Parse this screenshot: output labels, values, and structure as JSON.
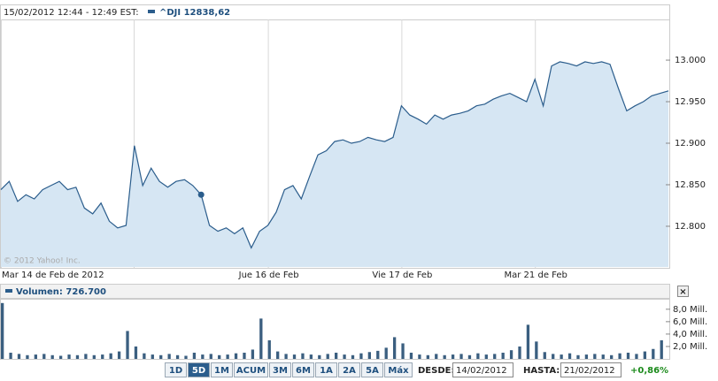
{
  "header": {
    "time": "15/02/2012 12:44 - 12:49 EST:",
    "symbol": "^DJI 12838,62"
  },
  "chart_data": [
    {
      "type": "area",
      "copyright": "© 2012 Yahoo! Inc.",
      "line_color": "#2b5d8c",
      "fill_color": "#d6e6f3",
      "xlim": [
        0,
        80
      ],
      "ylim": [
        12751,
        13049
      ],
      "xticks": [
        {
          "value": 0,
          "label": "Mar 14 de Feb de 2012"
        },
        {
          "value": 32,
          "label": "Jue 16 de Feb"
        },
        {
          "value": 48,
          "label": "Vie 17 de Feb"
        },
        {
          "value": 64,
          "label": "Mar 21 de Feb"
        }
      ],
      "yticks": [
        {
          "value": 12800,
          "label": "12.800"
        },
        {
          "value": 12850,
          "label": "12.850"
        },
        {
          "value": 12900,
          "label": "12.900"
        },
        {
          "value": 12950,
          "label": "12.950"
        },
        {
          "value": 13000,
          "label": "13.000"
        }
      ],
      "series": [
        {
          "name": "^DJI",
          "color": "#2b5d8c",
          "values": [
            12844,
            12854,
            12830,
            12838,
            12833,
            12844,
            12849,
            12854,
            12844,
            12847,
            12822,
            12815,
            12828,
            12806,
            12798,
            12801,
            12897,
            12849,
            12870,
            12854,
            12847,
            12854,
            12856,
            12849,
            12838,
            12801,
            12794,
            12798,
            12791,
            12798,
            12774,
            12794,
            12801,
            12817,
            12844,
            12849,
            12833,
            12860,
            12886,
            12891,
            12902,
            12904,
            12900,
            12902,
            12907,
            12904,
            12902,
            12907,
            12945,
            12934,
            12929,
            12923,
            12934,
            12929,
            12934,
            12936,
            12939,
            12945,
            12947,
            12953,
            12957,
            12960,
            12955,
            12950,
            12977,
            12945,
            12993,
            12998,
            12996,
            12993,
            12998,
            12996,
            12998,
            12995,
            12966,
            12939,
            12945,
            12950,
            12957,
            12960,
            12963
          ]
        }
      ]
    },
    {
      "type": "volume",
      "title": "Volumen: 726.700",
      "color": "#3b5f80",
      "xlim": [
        0,
        80
      ],
      "ylim": [
        0,
        9.4
      ],
      "yticks": [
        {
          "value": 2,
          "label": "2,0 Mill."
        },
        {
          "value": 4,
          "label": "4,0 Mill."
        },
        {
          "value": 6,
          "label": "6,0 Mill."
        },
        {
          "value": 8,
          "label": "8,0 Mill."
        }
      ],
      "values": [
        9.0,
        1.0,
        0.8,
        0.6,
        0.7,
        0.8,
        0.6,
        0.5,
        0.7,
        0.6,
        0.8,
        0.6,
        0.7,
        0.9,
        1.2,
        4.5,
        2.0,
        0.9,
        0.7,
        0.6,
        0.8,
        0.6,
        0.5,
        1.0,
        0.7,
        0.8,
        0.6,
        0.7,
        0.9,
        1.0,
        1.5,
        6.5,
        3.0,
        1.2,
        0.8,
        0.7,
        0.9,
        0.7,
        0.6,
        0.8,
        1.0,
        0.7,
        0.6,
        0.9,
        1.1,
        1.3,
        1.8,
        3.5,
        2.5,
        1.0,
        0.7,
        0.6,
        0.8,
        0.6,
        0.7,
        0.8,
        0.6,
        0.9,
        0.7,
        0.8,
        1.0,
        1.4,
        2.0,
        5.5,
        2.8,
        1.1,
        0.8,
        0.7,
        0.9,
        0.6,
        0.7,
        0.8,
        0.7,
        0.6,
        0.9,
        1.0,
        0.8,
        1.2,
        1.6,
        3.0
      ]
    }
  ],
  "controls": {
    "ranges": [
      "1D",
      "5D",
      "1M",
      "ACUM",
      "3M",
      "6M",
      "1A",
      "2A",
      "5A",
      "Máx"
    ],
    "from_label": "DESDE:",
    "from": "14/02/2012",
    "to_label": "HASTA:",
    "to": "21/02/2012",
    "change": "+0,86%"
  }
}
